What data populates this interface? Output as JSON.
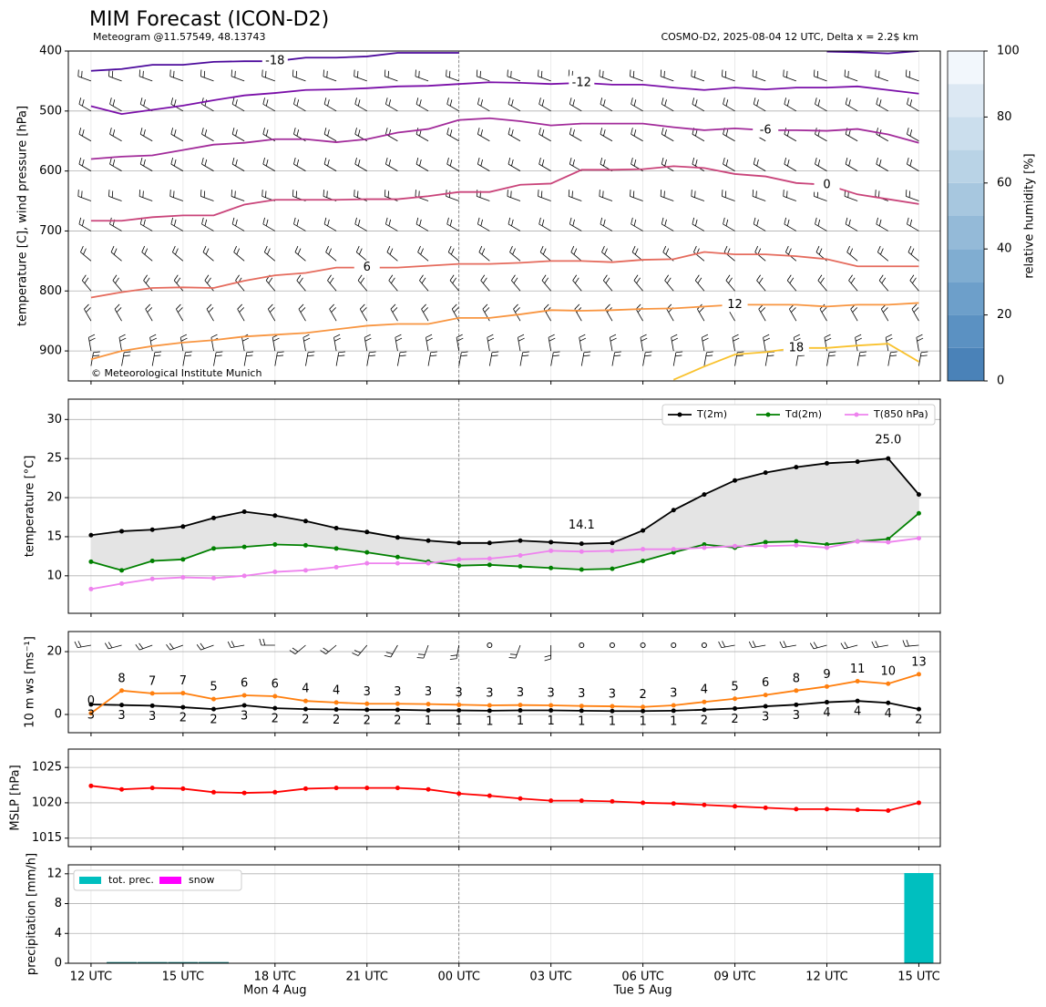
{
  "header": {
    "title": "MIM Forecast (ICON-D2)",
    "subtitle_left": "Meteogram @11.57549, 48.13743",
    "subtitle_right": "COSMO-D2, 2025-08-04 12 UTC, Delta x = 2.2$ km"
  },
  "x_axis": {
    "categories": [
      "12 UTC",
      null,
      null,
      "15 UTC",
      null,
      null,
      "18 UTC",
      null,
      null,
      "21 UTC",
      null,
      null,
      "00 UTC",
      null,
      null,
      "03 UTC",
      null,
      null,
      "06 UTC",
      null,
      null,
      "09 UTC",
      null,
      null,
      "12 UTC",
      null,
      null,
      "15 UTC"
    ],
    "date_labels": [
      "Mon 4 Aug",
      "Tue 5 Aug"
    ]
  },
  "chart_data": [
    {
      "type": "contour",
      "ylabel": "temperature [C], wind pressure [hPa]",
      "ylim": [
        950,
        400
      ],
      "yticks": [
        400,
        500,
        600,
        700,
        800,
        900
      ],
      "grid": true,
      "annotation": "© Meteorological Institute Munich",
      "series": [
        {
          "name": "-18",
          "color": "#4c0a9c",
          "values": [
            433,
            430,
            423,
            423,
            418,
            417,
            417,
            411,
            411,
            409,
            403,
            403,
            403,
            null,
            null,
            null,
            null,
            null,
            null,
            null,
            null,
            null,
            null,
            null,
            401,
            402,
            404,
            400
          ]
        },
        {
          "name": "-12",
          "color": "#7a0fa8",
          "values": [
            492,
            505,
            498,
            491,
            482,
            474,
            470,
            465,
            464,
            462,
            459,
            458,
            455,
            452,
            453,
            455,
            453,
            456,
            456,
            461,
            465,
            461,
            464,
            461,
            461,
            459,
            465,
            471
          ]
        },
        {
          "name": "-6",
          "color": "#a22b9a",
          "values": [
            580,
            576,
            574,
            565,
            556,
            553,
            547,
            547,
            552,
            547,
            536,
            530,
            515,
            512,
            517,
            524,
            521,
            521,
            521,
            527,
            532,
            529,
            532,
            532,
            533,
            530,
            539,
            553
          ]
        },
        {
          "name": "0",
          "color": "#c9447a",
          "values": [
            683,
            683,
            677,
            674,
            674,
            656,
            648,
            648,
            648,
            647,
            647,
            642,
            635,
            635,
            623,
            621,
            598,
            598,
            597,
            592,
            595,
            605,
            609,
            620,
            623,
            639,
            647,
            655
          ]
        },
        {
          "name": "6",
          "color": "#e56b5d",
          "values": [
            811,
            802,
            795,
            794,
            795,
            783,
            774,
            770,
            761,
            761,
            761,
            758,
            755,
            755,
            753,
            750,
            750,
            752,
            748,
            747,
            735,
            739,
            739,
            742,
            747,
            759,
            759,
            759
          ]
        },
        {
          "name": "12",
          "color": "#f89540",
          "values": [
            914,
            900,
            892,
            886,
            882,
            876,
            873,
            870,
            864,
            858,
            855,
            855,
            845,
            845,
            839,
            832,
            833,
            832,
            830,
            829,
            826,
            823,
            823,
            823,
            826,
            823,
            823,
            820
          ]
        },
        {
          "name": "18",
          "color": "#f9c22e",
          "values": [
            null,
            null,
            null,
            null,
            null,
            null,
            null,
            null,
            null,
            null,
            null,
            null,
            null,
            null,
            null,
            null,
            null,
            null,
            null,
            948,
            926,
            906,
            902,
            895,
            895,
            891,
            888,
            918
          ]
        }
      ],
      "barbs": {
        "levels": [
          400,
          450,
          500,
          550,
          600,
          650,
          700,
          750,
          800,
          850,
          900,
          925
        ],
        "directions": [
          290,
          290,
          300,
          300,
          300,
          290,
          300,
          310,
          320,
          330,
          350,
          10
        ]
      },
      "colorbar": {
        "label": "relative humidity [%]",
        "ylim": [
          0,
          100
        ],
        "yticks": [
          0,
          20,
          40,
          60,
          80,
          100
        ],
        "bins": [
          0,
          10,
          20,
          30,
          40,
          50,
          60,
          70,
          80,
          90,
          100
        ],
        "colors": [
          "#4a82b8",
          "#5b91c2",
          "#6d9fca",
          "#80add1",
          "#94bad8",
          "#a7c7df",
          "#b9d3e6",
          "#cbdeed",
          "#dce8f3",
          "#f2f7fc"
        ]
      }
    },
    {
      "type": "line",
      "ylabel": "temperature [°C]",
      "ylim": [
        5.2,
        32.6
      ],
      "yticks": [
        10,
        15,
        20,
        25,
        30
      ],
      "grid": true,
      "legend": "upper right",
      "fill_color": "#e4e4e4",
      "series": [
        {
          "name": "T(2m)",
          "color": "#000000",
          "values": [
            15.2,
            15.7,
            15.9,
            16.3,
            17.4,
            18.2,
            17.7,
            17.0,
            16.1,
            15.6,
            14.9,
            14.5,
            14.2,
            14.2,
            14.5,
            14.3,
            14.1,
            14.2,
            15.8,
            18.4,
            20.4,
            22.2,
            23.2,
            23.9,
            24.4,
            24.6,
            25.0,
            20.4
          ],
          "min_label": "14.1",
          "min_label_color": "#0000ff",
          "max_label": "25.0",
          "max_label_color": "#ff0000"
        },
        {
          "name": "Td(2m)",
          "color": "#008000",
          "values": [
            11.8,
            10.7,
            11.9,
            12.1,
            13.5,
            13.7,
            14.0,
            13.9,
            13.5,
            13.0,
            12.4,
            11.8,
            11.3,
            11.4,
            11.2,
            11.0,
            10.8,
            10.9,
            11.9,
            13.0,
            14.0,
            13.6,
            14.3,
            14.4,
            14.0,
            14.4,
            14.7,
            18.0
          ]
        },
        {
          "name": "T(850 hPa)",
          "color": "#ee82ee",
          "values": [
            8.3,
            9.0,
            9.6,
            9.8,
            9.7,
            10.0,
            10.5,
            10.7,
            11.1,
            11.6,
            11.6,
            11.6,
            12.1,
            12.2,
            12.6,
            13.2,
            13.1,
            13.2,
            13.4,
            13.4,
            13.6,
            13.8,
            13.8,
            13.9,
            13.6,
            14.4,
            14.3,
            14.8
          ]
        }
      ]
    },
    {
      "type": "line",
      "ylabel": "10 m ws [ms⁻¹]",
      "ylim": [
        -5.8,
        26.4
      ],
      "yticks": [
        0,
        20
      ],
      "grid": true,
      "series": [
        {
          "color": "#000000",
          "values": [
            3.2,
            3.0,
            2.8,
            2.3,
            1.7,
            2.9,
            2.0,
            1.7,
            1.6,
            1.5,
            1.5,
            1.3,
            1.3,
            1.2,
            1.3,
            1.3,
            1.2,
            1.1,
            1.1,
            1.2,
            1.5,
            1.9,
            2.6,
            3.1,
            3.9,
            4.3,
            3.7,
            1.7
          ],
          "value_labels": [
            "3",
            "3",
            "3",
            "2",
            "2",
            "3",
            "2",
            "2",
            "2",
            "2",
            "2",
            "1",
            "1",
            "1",
            "1",
            "1",
            "1",
            "1",
            "1",
            "1",
            "2",
            "2",
            "3",
            "3",
            "4",
            "4",
            "4",
            "2"
          ]
        },
        {
          "color": "#ff7f0e",
          "values": [
            0.4,
            7.6,
            6.7,
            6.8,
            4.9,
            6.1,
            5.8,
            4.3,
            3.8,
            3.4,
            3.4,
            3.3,
            3.1,
            2.9,
            3.0,
            2.9,
            2.7,
            2.6,
            2.4,
            2.9,
            4.0,
            5.0,
            6.2,
            7.6,
            8.9,
            10.6,
            9.8,
            12.8
          ],
          "value_labels": [
            "0",
            "8",
            "7",
            "7",
            "5",
            "6",
            "6",
            "4",
            "4",
            "3",
            "3",
            "3",
            "3",
            "3",
            "3",
            "3",
            "3",
            "3",
            "2",
            "3",
            "4",
            "5",
            "6",
            "8",
            "9",
            "11",
            "10",
            "13"
          ]
        }
      ],
      "barbs": {
        "directions": [
          260,
          255,
          250,
          250,
          250,
          260,
          270,
          230,
          230,
          220,
          210,
          200,
          190,
          null,
          200,
          180,
          null,
          null,
          null,
          null,
          null,
          260,
          260,
          260,
          255,
          255,
          260,
          265
        ]
      }
    },
    {
      "type": "line",
      "ylabel": "MSLP [hPa]",
      "ylim": [
        1013.8,
        1027.6
      ],
      "yticks": [
        1015,
        1020,
        1025
      ],
      "grid": true,
      "series": [
        {
          "color": "#ff0000",
          "values": [
            1022.4,
            1021.9,
            1022.1,
            1022.0,
            1021.5,
            1021.4,
            1021.5,
            1022.0,
            1022.1,
            1022.1,
            1022.1,
            1021.9,
            1021.3,
            1021.0,
            1020.6,
            1020.3,
            1020.3,
            1020.2,
            1020.0,
            1019.9,
            1019.7,
            1019.5,
            1019.3,
            1019.1,
            1019.1,
            1019.0,
            1018.9,
            1020.0
          ]
        }
      ]
    },
    {
      "type": "bar",
      "ylabel": "precipitation [mm/h]",
      "ylim": [
        0,
        13.2
      ],
      "yticks": [
        0,
        4,
        8,
        12
      ],
      "grid": true,
      "legend": "upper left",
      "series": [
        {
          "name": "tot. prec.",
          "color": "#00bfbf",
          "values": [
            0,
            0.1,
            0.1,
            0.1,
            0.1,
            0,
            0,
            0,
            0,
            0,
            0,
            0,
            0,
            0,
            0,
            0,
            0,
            0,
            0,
            0,
            0,
            0,
            0,
            0,
            0,
            0,
            0,
            12.1
          ]
        },
        {
          "name": "snow",
          "color": "#ff00ff",
          "values": [
            0,
            0,
            0,
            0,
            0,
            0,
            0,
            0,
            0,
            0,
            0,
            0,
            0,
            0,
            0,
            0,
            0,
            0,
            0,
            0,
            0,
            0,
            0,
            0,
            0,
            0,
            0,
            0
          ]
        }
      ]
    }
  ]
}
